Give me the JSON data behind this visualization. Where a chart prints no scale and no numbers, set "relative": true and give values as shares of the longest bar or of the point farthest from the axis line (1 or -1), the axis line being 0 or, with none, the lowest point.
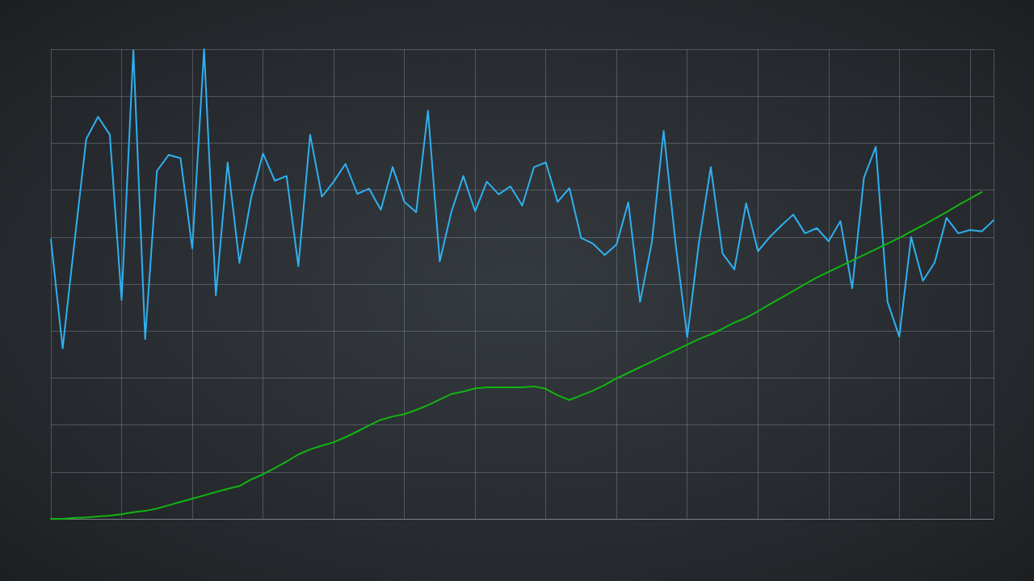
{
  "chart_data": {
    "type": "line",
    "relative": true,
    "grid": true,
    "marker": "none",
    "line_style": "solid",
    "categories": [
      null,
      null,
      null,
      null,
      null,
      null,
      null,
      null,
      null,
      null,
      null,
      null,
      null,
      null,
      null,
      null,
      null,
      null,
      null,
      null,
      null,
      null,
      null,
      null,
      null,
      null,
      null,
      null,
      null,
      null,
      null,
      null,
      null,
      null,
      null,
      null,
      null,
      null,
      null,
      null,
      null,
      null,
      null,
      null,
      null,
      null,
      null,
      null,
      null,
      null,
      null,
      null,
      null,
      null,
      null,
      null,
      null,
      null,
      null,
      null,
      null,
      null,
      null,
      null,
      null,
      null,
      null,
      null,
      null,
      null,
      null,
      null,
      null,
      null,
      null,
      null,
      null,
      null,
      null,
      null,
      null
    ],
    "series": [
      {
        "color": "#2fb0f0",
        "values": [
          0.595,
          0.363,
          0.589,
          0.809,
          0.856,
          0.818,
          0.466,
          0.998,
          0.383,
          0.741,
          0.775,
          0.768,
          0.576,
          1,
          0.476,
          0.759,
          0.545,
          0.684,
          0.778,
          0.72,
          0.73,
          0.538,
          0.818,
          0.686,
          0.718,
          0.756,
          0.692,
          0.703,
          0.658,
          0.749,
          0.675,
          0.653,
          0.869,
          0.548,
          0.655,
          0.73,
          0.655,
          0.718,
          0.691,
          0.708,
          0.667,
          0.749,
          0.759,
          0.675,
          0.704,
          0.598,
          0.586,
          0.562,
          0.584,
          0.674,
          0.462,
          0.589,
          0.826,
          0.589,
          0.387,
          0.589,
          0.749,
          0.565,
          0.531,
          0.672,
          0.57,
          0.6,
          0.625,
          0.648,
          0.608,
          0.619,
          0.591,
          0.634,
          0.491,
          0.727,
          0.792,
          0.462,
          0.388,
          0.6,
          0.507,
          0.546,
          0.641,
          0.608,
          0.615,
          0.612,
          0.636
        ]
      },
      {
        "color": "#11b511",
        "values": [
          0,
          0,
          0.002,
          0.003,
          0.005,
          0.007,
          0.01,
          0.014,
          0.017,
          0.022,
          0.029,
          0.036,
          0.043,
          0.05,
          0.057,
          0.064,
          0.07,
          0.084,
          0.095,
          0.108,
          0.122,
          0.137,
          0.148,
          0.156,
          0.163,
          0.174,
          0.186,
          0.199,
          0.211,
          0.218,
          0.223,
          0.232,
          0.242,
          0.254,
          0.266,
          0.271,
          0.278,
          0.28,
          0.28,
          0.28,
          0.28,
          0.282,
          0.277,
          0.263,
          0.253,
          0.263,
          0.273,
          0.285,
          0.299,
          0.311,
          0.323,
          0.335,
          0.347,
          0.359,
          0.371,
          0.383,
          0.393,
          0.405,
          0.418,
          0.428,
          0.442,
          0.457,
          0.471,
          0.485,
          0.5,
          0.514,
          0.526,
          0.538,
          0.55,
          0.562,
          0.574,
          0.586,
          0.598,
          0.612,
          0.625,
          0.639,
          0.653,
          0.668,
          0.682,
          0.696,
          null
        ]
      }
    ]
  }
}
